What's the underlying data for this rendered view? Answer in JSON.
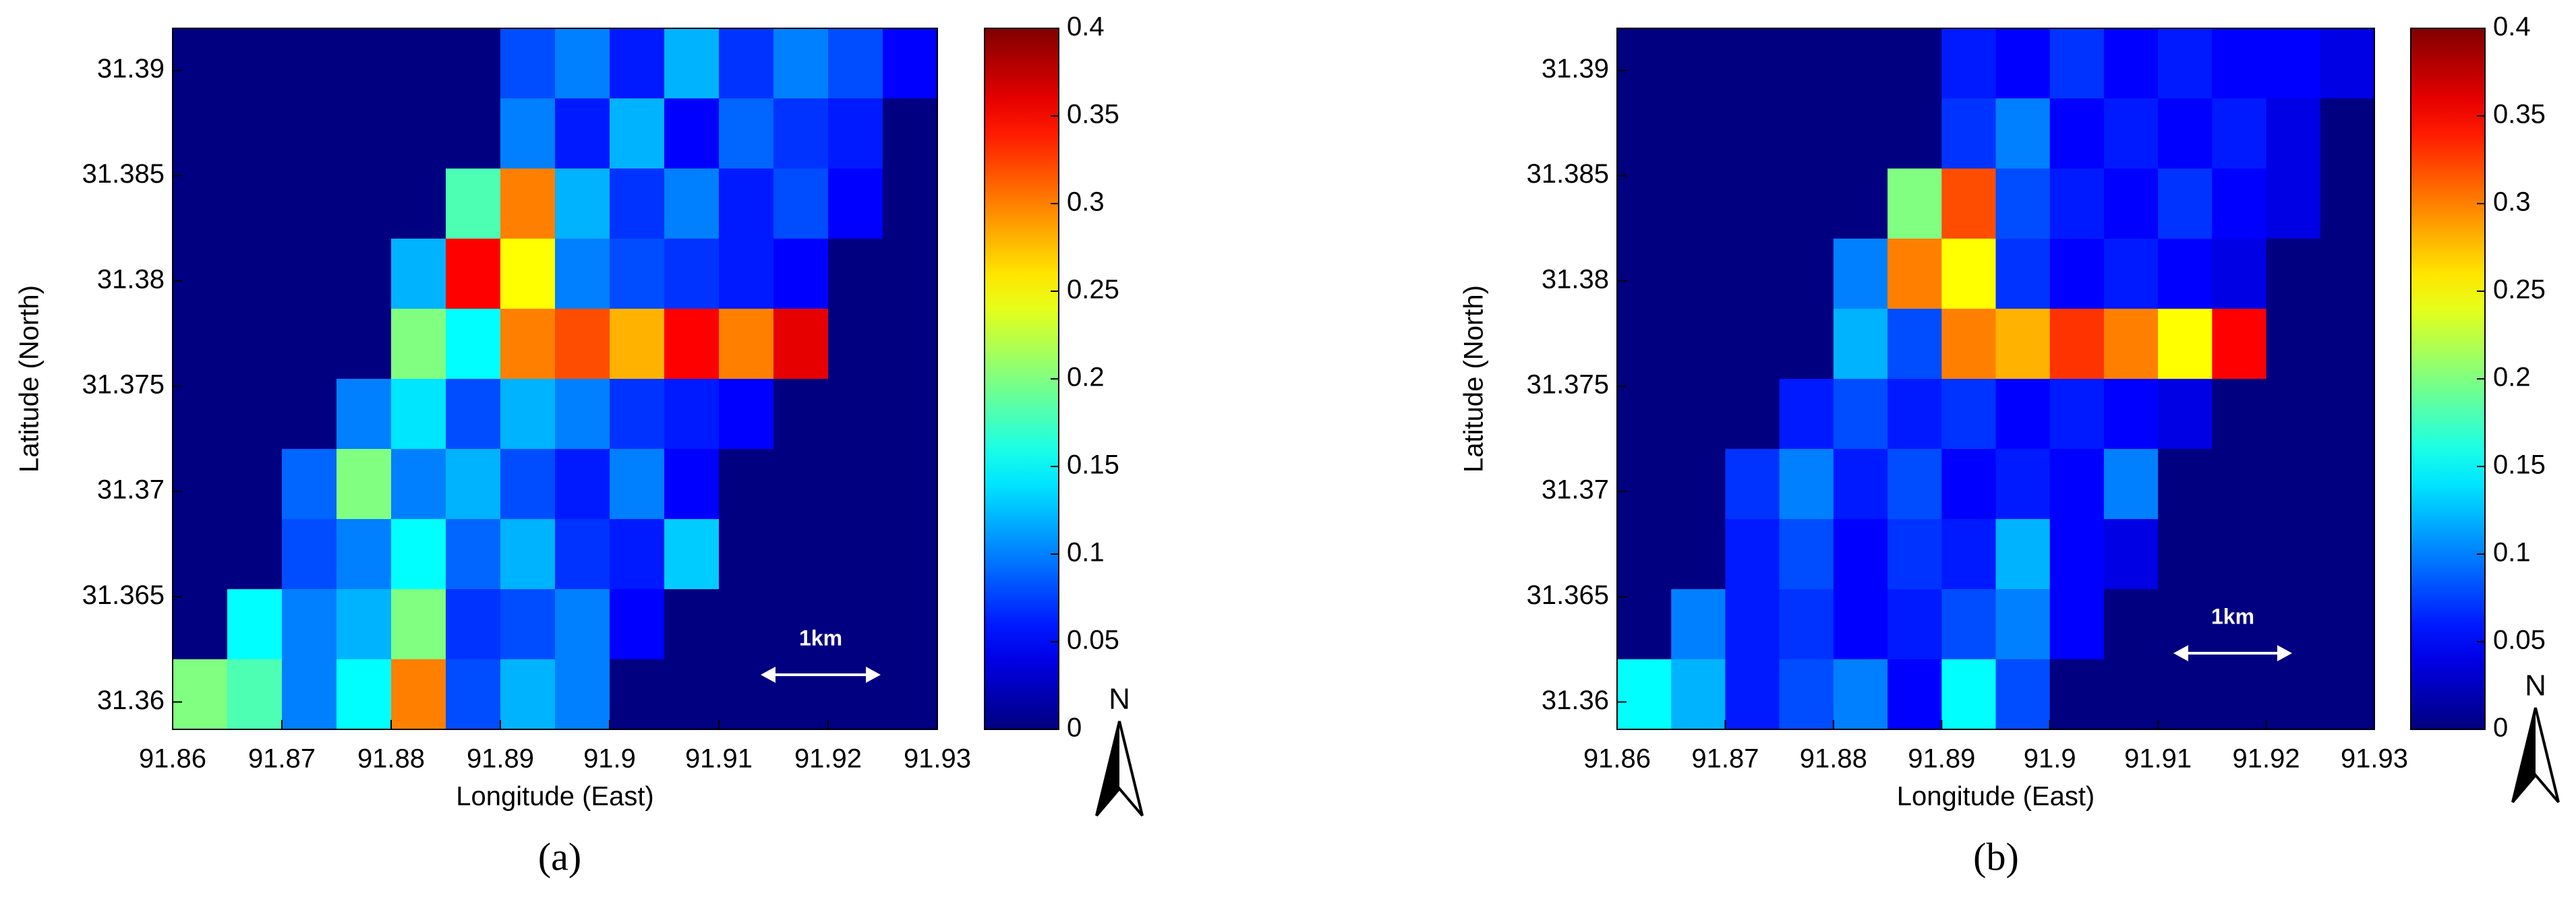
{
  "chart_data": [
    {
      "type": "heatmap",
      "panel_label": "(a)",
      "xlabel": "Longitude (East)",
      "ylabel": "Latitude (North)",
      "xlim": [
        91.86,
        91.93
      ],
      "xticks": [
        91.86,
        91.87,
        91.88,
        91.89,
        91.9,
        91.91,
        91.92,
        91.93
      ],
      "ylim": [
        31.3587,
        31.392
      ],
      "yticks": [
        31.36,
        31.365,
        31.37,
        31.375,
        31.38,
        31.385,
        31.39
      ],
      "colormap": "jet",
      "clim": [
        0,
        0.4
      ],
      "cticks": [
        0,
        0.05,
        0.1,
        0.15,
        0.2,
        0.25,
        0.3,
        0.35,
        0.4
      ],
      "scale_label": "1km",
      "north_label": "N",
      "z": [
        [
          0,
          0,
          0,
          0,
          0,
          0,
          0.08,
          0.1,
          0.06,
          0.12,
          0.07,
          0.1,
          0.08,
          0.05
        ],
        [
          0,
          0,
          0,
          0,
          0,
          0,
          0.1,
          0.06,
          0.12,
          0.05,
          0.09,
          0.07,
          0.06,
          0
        ],
        [
          0,
          0,
          0,
          0,
          0,
          0.18,
          0.3,
          0.12,
          0.07,
          0.1,
          0.06,
          0.08,
          0.05,
          0
        ],
        [
          0,
          0,
          0,
          0,
          0.12,
          0.35,
          0.25,
          0.1,
          0.08,
          0.07,
          0.06,
          0.05,
          0,
          0
        ],
        [
          0,
          0,
          0,
          0,
          0.2,
          0.15,
          0.3,
          0.32,
          0.28,
          0.35,
          0.3,
          0.36,
          0,
          0
        ],
        [
          0,
          0,
          0,
          0.1,
          0.14,
          0.08,
          0.12,
          0.1,
          0.07,
          0.06,
          0.05,
          0,
          0,
          0
        ],
        [
          0,
          0,
          0.09,
          0.2,
          0.1,
          0.12,
          0.08,
          0.06,
          0.1,
          0.05,
          0,
          0,
          0,
          0
        ],
        [
          0,
          0,
          0.08,
          0.1,
          0.15,
          0.09,
          0.12,
          0.07,
          0.06,
          0.13,
          0,
          0,
          0,
          0
        ],
        [
          0,
          0.15,
          0.1,
          0.12,
          0.2,
          0.07,
          0.08,
          0.1,
          0.05,
          0,
          0,
          0,
          0,
          0
        ],
        [
          0.2,
          0.18,
          0.1,
          0.15,
          0.3,
          0.08,
          0.12,
          0.1,
          0,
          0,
          0,
          0,
          0,
          0
        ]
      ]
    },
    {
      "type": "heatmap",
      "panel_label": "(b)",
      "xlabel": "Longitude (East)",
      "ylabel": "Latitude (North)",
      "xlim": [
        91.86,
        91.93
      ],
      "xticks": [
        91.86,
        91.87,
        91.88,
        91.89,
        91.9,
        91.91,
        91.92,
        91.93
      ],
      "ylim": [
        31.3587,
        31.392
      ],
      "yticks": [
        31.36,
        31.365,
        31.37,
        31.375,
        31.38,
        31.385,
        31.39
      ],
      "colormap": "jet",
      "clim": [
        0,
        0.4
      ],
      "cticks": [
        0,
        0.05,
        0.1,
        0.15,
        0.2,
        0.25,
        0.3,
        0.35,
        0.4
      ],
      "scale_label": "1km",
      "north_label": "N",
      "z": [
        [
          0,
          0,
          0,
          0,
          0,
          0,
          0.06,
          0.05,
          0.07,
          0.05,
          0.06,
          0.05,
          0.05,
          0.04
        ],
        [
          0,
          0,
          0,
          0,
          0,
          0,
          0.07,
          0.1,
          0.05,
          0.06,
          0.05,
          0.06,
          0.04,
          0
        ],
        [
          0,
          0,
          0,
          0,
          0,
          0.2,
          0.32,
          0.08,
          0.06,
          0.05,
          0.07,
          0.05,
          0.04,
          0
        ],
        [
          0,
          0,
          0,
          0,
          0.1,
          0.3,
          0.25,
          0.07,
          0.05,
          0.06,
          0.05,
          0.04,
          0,
          0
        ],
        [
          0,
          0,
          0,
          0,
          0.12,
          0.08,
          0.3,
          0.28,
          0.33,
          0.3,
          0.25,
          0.35,
          0,
          0
        ],
        [
          0,
          0,
          0,
          0.06,
          0.08,
          0.06,
          0.07,
          0.05,
          0.06,
          0.05,
          0.04,
          0,
          0,
          0
        ],
        [
          0,
          0,
          0.07,
          0.1,
          0.06,
          0.08,
          0.05,
          0.06,
          0.05,
          0.1,
          0,
          0,
          0,
          0
        ],
        [
          0,
          0,
          0.06,
          0.08,
          0.05,
          0.07,
          0.06,
          0.12,
          0.05,
          0.04,
          0,
          0,
          0,
          0
        ],
        [
          0,
          0.1,
          0.06,
          0.07,
          0.05,
          0.06,
          0.08,
          0.1,
          0.05,
          0,
          0,
          0,
          0,
          0
        ],
        [
          0.15,
          0.12,
          0.06,
          0.08,
          0.1,
          0.05,
          0.15,
          0.08,
          0,
          0,
          0,
          0,
          0,
          0
        ]
      ]
    }
  ]
}
